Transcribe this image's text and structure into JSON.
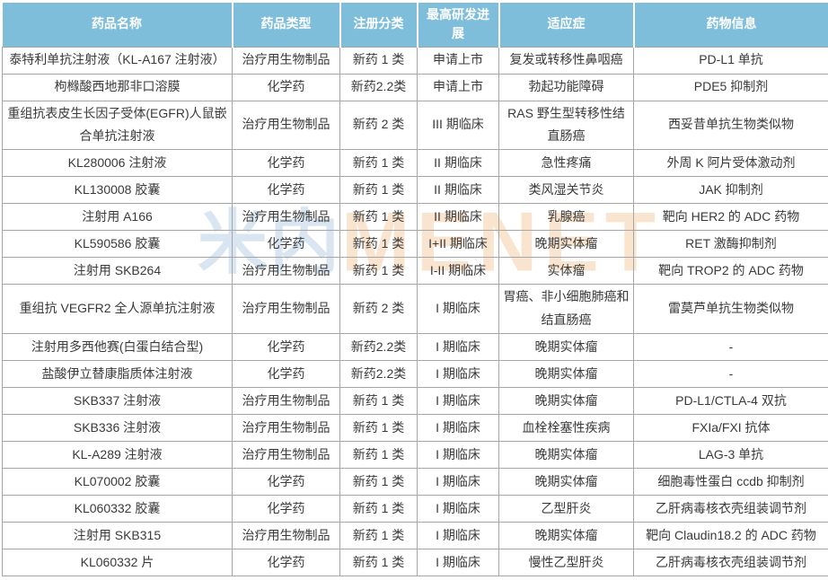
{
  "header": {
    "columns": [
      "药品名称",
      "药品类型",
      "注册分类",
      "最高研发进展",
      "适应症",
      "药物信息"
    ]
  },
  "watermark": {
    "cn": "米内",
    "en": "MENET"
  },
  "colors": {
    "header_bg": "#7FBEDB",
    "header_text": "#FFFFFF",
    "border": "#A6A6A6",
    "body_text": "#3A3A3A",
    "watermark_cn": "#AAC7E2",
    "watermark_en": "#EEBA82"
  },
  "table": {
    "rows": [
      {
        "name": "泰特利单抗注射液（KL-A167 注射液）",
        "type": "治疗用生物制品",
        "reg": "新药 1 类",
        "stage": "申请上市",
        "indication": "复发或转移性鼻咽癌",
        "info": "PD-L1 单抗"
      },
      {
        "name": "枸橼酸西地那非口溶膜",
        "type": "化学药",
        "reg": "新药2.2类",
        "stage": "申请上市",
        "indication": "勃起功能障碍",
        "info": "PDE5 抑制剂"
      },
      {
        "name": "重组抗表皮生长因子受体(EGFR)人鼠嵌合单抗注射液",
        "type": "治疗用生物制品",
        "reg": "新药 2 类",
        "stage": "III 期临床",
        "indication": "RAS 野生型转移性结直肠癌",
        "info": "西妥昔单抗生物类似物"
      },
      {
        "name": "KL280006 注射液",
        "type": "化学药",
        "reg": "新药 1 类",
        "stage": "II 期临床",
        "indication": "急性疼痛",
        "info": "外周 K 阿片受体激动剂"
      },
      {
        "name": "KL130008 胶囊",
        "type": "化学药",
        "reg": "新药 1 类",
        "stage": "II 期临床",
        "indication": "类风湿关节炎",
        "info": "JAK 抑制剂"
      },
      {
        "name": "注射用 A166",
        "type": "治疗用生物制品",
        "reg": "新药 1 类",
        "stage": "II 期临床",
        "indication": "乳腺癌",
        "info": "靶向 HER2 的 ADC 药物"
      },
      {
        "name": "KL590586 胶囊",
        "type": "化学药",
        "reg": "新药 1 类",
        "stage": "I+II 期临床",
        "indication": "晚期实体瘤",
        "info": "RET 激酶抑制剂"
      },
      {
        "name": "注射用 SKB264",
        "type": "治疗用生物制品",
        "reg": "新药 1 类",
        "stage": "I-II 期临床",
        "indication": "实体瘤",
        "info": "靶向 TROP2 的 ADC 药物"
      },
      {
        "name": "重组抗 VEGFR2 全人源单抗注射液",
        "type": "治疗用生物制品",
        "reg": "新药 2 类",
        "stage": "I 期临床",
        "indication": "胃癌、非小细胞肺癌和结直肠癌",
        "info": "雷莫芦单抗生物类似物"
      },
      {
        "name": "注射用多西他赛(白蛋白结合型)",
        "type": "化学药",
        "reg": "新药2.2类",
        "stage": "I 期临床",
        "indication": "晚期实体瘤",
        "info": "-"
      },
      {
        "name": "盐酸伊立替康脂质体注射液",
        "type": "化学药",
        "reg": "新药2.2类",
        "stage": "I 期临床",
        "indication": "晚期实体瘤",
        "info": "-"
      },
      {
        "name": "SKB337 注射液",
        "type": "治疗用生物制品",
        "reg": "新药 1 类",
        "stage": "I 期临床",
        "indication": "晚期实体瘤",
        "info": "PD-L1/CTLA-4 双抗"
      },
      {
        "name": "SKB336 注射液",
        "type": "治疗用生物制品",
        "reg": "新药 1 类",
        "stage": "I 期临床",
        "indication": "血栓栓塞性疾病",
        "info": "FXIa/FXI 抗体"
      },
      {
        "name": "KL-A289 注射液",
        "type": "治疗用生物制品",
        "reg": "新药 1 类",
        "stage": "I 期临床",
        "indication": "晚期实体瘤",
        "info": "LAG-3 单抗"
      },
      {
        "name": "KL070002 胶囊",
        "type": "化学药",
        "reg": "新药 1 类",
        "stage": "I 期临床",
        "indication": "晚期实体瘤",
        "info": "细胞毒性蛋白 ccdb 抑制剂"
      },
      {
        "name": "KL060332 胶囊",
        "type": "化学药",
        "reg": "新药 1 类",
        "stage": "I 期临床",
        "indication": "乙型肝炎",
        "info": "乙肝病毒核衣壳组装调节剂"
      },
      {
        "name": "注射用 SKB315",
        "type": "治疗用生物制品",
        "reg": "新药 1 类",
        "stage": "I 期临床",
        "indication": "晚期实体瘤",
        "info": "靶向 Claudin18.2 的 ADC 药物"
      },
      {
        "name": "KL060332 片",
        "type": "化学药",
        "reg": "新药 1 类",
        "stage": "I 期临床",
        "indication": "慢性乙型肝炎",
        "info": "乙肝病毒核衣壳组装调节剂"
      }
    ]
  }
}
